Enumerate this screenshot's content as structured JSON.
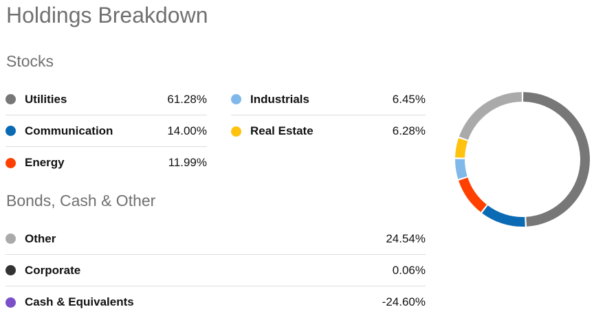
{
  "title": "Holdings Breakdown",
  "stocks": {
    "heading": "Stocks",
    "items": [
      {
        "label": "Utilities",
        "value": "61.28%",
        "color": "#777777"
      },
      {
        "label": "Communication",
        "value": "14.00%",
        "color": "#0a6ab4"
      },
      {
        "label": "Energy",
        "value": "11.99%",
        "color": "#ff4000"
      },
      {
        "label": "Industrials",
        "value": "6.45%",
        "color": "#80b8ea"
      },
      {
        "label": "Real Estate",
        "value": "6.28%",
        "color": "#ffc20e"
      }
    ]
  },
  "bonds": {
    "heading": "Bonds, Cash & Other",
    "items": [
      {
        "label": "Other",
        "value": "24.54%",
        "color": "#aaaaaa"
      },
      {
        "label": "Corporate",
        "value": "0.06%",
        "color": "#333333"
      },
      {
        "label": "Cash & Equivalents",
        "value": "-24.60%",
        "color": "#7a4fc8"
      }
    ]
  },
  "chart_data": {
    "type": "pie",
    "style": "donut",
    "categories": [
      "Utilities",
      "Communication",
      "Energy",
      "Industrials",
      "Real Estate",
      "Other"
    ],
    "values": [
      61.28,
      14.0,
      11.99,
      6.45,
      6.28,
      24.54
    ],
    "colors": [
      "#777777",
      "#0a6ab4",
      "#ff4000",
      "#80b8ea",
      "#ffc20e",
      "#aaaaaa"
    ],
    "title": "",
    "legend": "left"
  }
}
